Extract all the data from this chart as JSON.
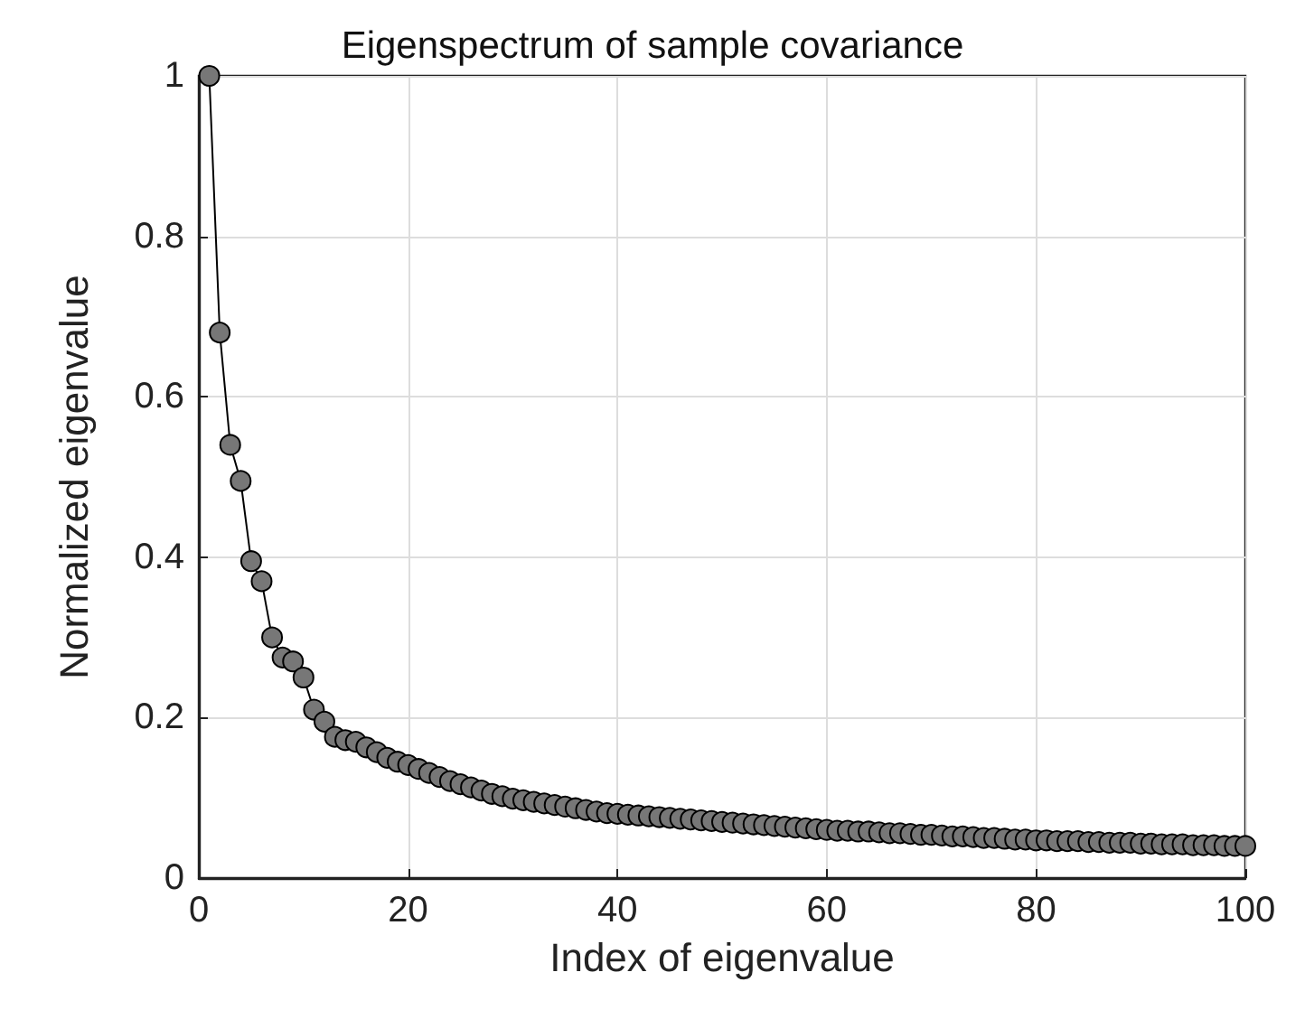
{
  "chart_data": {
    "type": "line",
    "title": "Eigenspectrum of sample covariance",
    "xlabel": "Index of eigenvalue",
    "ylabel": "Normalized eigenvalue",
    "x": [
      1,
      2,
      3,
      4,
      5,
      6,
      7,
      8,
      9,
      10,
      11,
      12,
      13,
      14,
      15,
      16,
      17,
      18,
      19,
      20,
      21,
      22,
      23,
      24,
      25,
      26,
      27,
      28,
      29,
      30,
      31,
      32,
      33,
      34,
      35,
      36,
      37,
      38,
      39,
      40,
      41,
      42,
      43,
      44,
      45,
      46,
      47,
      48,
      49,
      50,
      51,
      52,
      53,
      54,
      55,
      56,
      57,
      58,
      59,
      60,
      61,
      62,
      63,
      64,
      65,
      66,
      67,
      68,
      69,
      70,
      71,
      72,
      73,
      74,
      75,
      76,
      77,
      78,
      79,
      80,
      81,
      82,
      83,
      84,
      85,
      86,
      87,
      88,
      89,
      90,
      91,
      92,
      93,
      94,
      95,
      96,
      97,
      98,
      99,
      100
    ],
    "series": [
      {
        "color": "#777777",
        "values": [
          1,
          0.68,
          0.54,
          0.495,
          0.395,
          0.37,
          0.3,
          0.275,
          0.27,
          0.25,
          0.21,
          0.195,
          0.176,
          0.172,
          0.17,
          0.163,
          0.157,
          0.15,
          0.145,
          0.141,
          0.136,
          0.131,
          0.126,
          0.121,
          0.117,
          0.113,
          0.109,
          0.105,
          0.102,
          0.099,
          0.097,
          0.095,
          0.093,
          0.091,
          0.089,
          0.087,
          0.085,
          0.083,
          0.081,
          0.08,
          0.079,
          0.078,
          0.077,
          0.076,
          0.075,
          0.074,
          0.073,
          0.072,
          0.071,
          0.07,
          0.069,
          0.068,
          0.067,
          0.066,
          0.065,
          0.064,
          0.063,
          0.062,
          0.061,
          0.06,
          0.059,
          0.059,
          0.058,
          0.058,
          0.057,
          0.056,
          0.056,
          0.055,
          0.054,
          0.054,
          0.053,
          0.052,
          0.052,
          0.051,
          0.05,
          0.05,
          0.049,
          0.048,
          0.048,
          0.047,
          0.047,
          0.046,
          0.046,
          0.046,
          0.045,
          0.045,
          0.044,
          0.044,
          0.044,
          0.043,
          0.043,
          0.042,
          0.042,
          0.042,
          0.041,
          0.041,
          0.041,
          0.04,
          0.04,
          0.04
        ]
      }
    ],
    "xlim": [
      0,
      100
    ],
    "xticks": [
      0,
      20,
      40,
      60,
      80,
      100
    ],
    "ylim": [
      0,
      1
    ],
    "yticks": [
      0,
      0.2,
      0.4,
      0.6,
      0.8,
      1
    ],
    "grid": true,
    "marker": "circle",
    "line_style": "solid"
  }
}
